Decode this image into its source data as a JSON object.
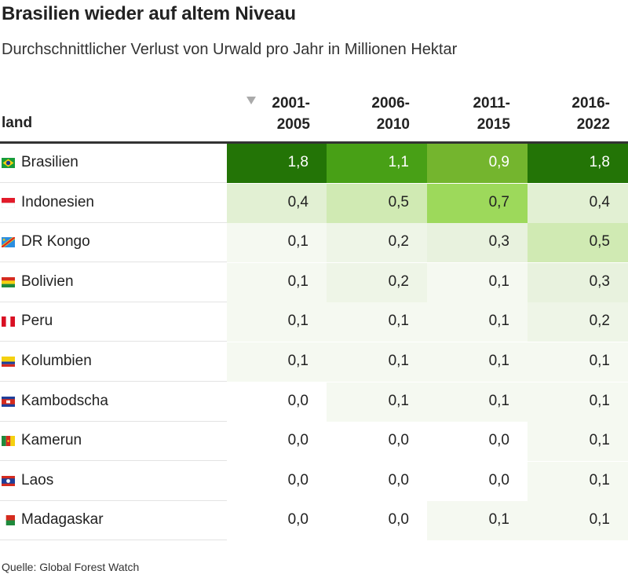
{
  "title": "Brasilien wieder auf altem Niveau",
  "subtitle": "Durchschnittlicher Verlust von Urwald pro Jahr in Millionen Hektar",
  "source": "Quelle: Global Forest Watch",
  "header": {
    "land": "land",
    "columns": [
      {
        "line1": "2001-",
        "line2": "2005"
      },
      {
        "line1": "2006-",
        "line2": "2010"
      },
      {
        "line1": "2011-",
        "line2": "2015"
      },
      {
        "line1": "2016-",
        "line2": "2022"
      }
    ],
    "sort_icon": "sort-desc-triangle-icon"
  },
  "chart_data": {
    "type": "table",
    "title": "Brasilien wieder auf altem Niveau",
    "subtitle": "Durchschnittlicher Verlust von Urwald pro Jahr in Millionen Hektar",
    "columns": [
      "2001-2005",
      "2006-2010",
      "2011-2015",
      "2016-2022"
    ],
    "rows": [
      {
        "country": "Brasilien",
        "flag": "brazil-flag-icon",
        "values": [
          "1,8",
          "1,1",
          "0,9",
          "1,8"
        ]
      },
      {
        "country": "Indonesien",
        "flag": "indonesia-flag-icon",
        "values": [
          "0,4",
          "0,5",
          "0,7",
          "0,4"
        ]
      },
      {
        "country": "DR Kongo",
        "flag": "dr-congo-flag-icon",
        "values": [
          "0,1",
          "0,2",
          "0,3",
          "0,5"
        ]
      },
      {
        "country": "Bolivien",
        "flag": "bolivia-flag-icon",
        "values": [
          "0,1",
          "0,2",
          "0,1",
          "0,3"
        ]
      },
      {
        "country": "Peru",
        "flag": "peru-flag-icon",
        "values": [
          "0,1",
          "0,1",
          "0,1",
          "0,2"
        ]
      },
      {
        "country": "Kolumbien",
        "flag": "colombia-flag-icon",
        "values": [
          "0,1",
          "0,1",
          "0,1",
          "0,1"
        ]
      },
      {
        "country": "Kambodscha",
        "flag": "cambodia-flag-icon",
        "values": [
          "0,0",
          "0,1",
          "0,1",
          "0,1"
        ]
      },
      {
        "country": "Kamerun",
        "flag": "cameroon-flag-icon",
        "values": [
          "0,0",
          "0,0",
          "0,0",
          "0,1"
        ]
      },
      {
        "country": "Laos",
        "flag": "laos-flag-icon",
        "values": [
          "0,0",
          "0,0",
          "0,0",
          "0,1"
        ]
      },
      {
        "country": "Madagaskar",
        "flag": "madagascar-flag-icon",
        "values": [
          "0,0",
          "0,0",
          "0,1",
          "0,1"
        ]
      }
    ]
  }
}
